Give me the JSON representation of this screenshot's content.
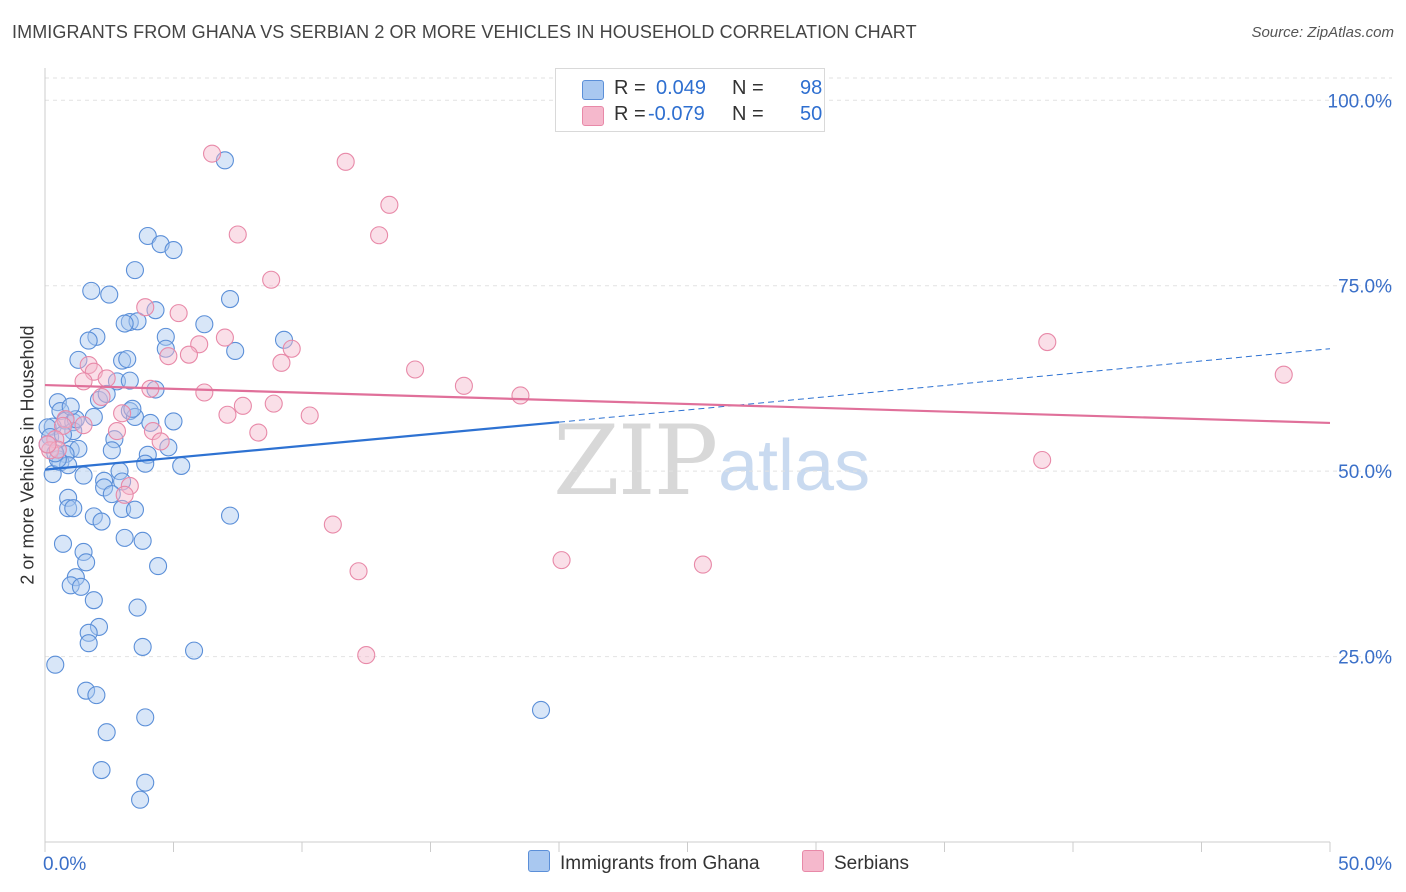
{
  "header": {
    "title": "IMMIGRANTS FROM GHANA VS SERBIAN 2 OR MORE VEHICLES IN HOUSEHOLD CORRELATION CHART",
    "source": "Source: ZipAtlas.com"
  },
  "stats": {
    "r_label": "R =",
    "n_label": "N =",
    "ghana": {
      "r": "0.049",
      "n": "98"
    },
    "serbians": {
      "r": "-0.079",
      "n": "50"
    }
  },
  "watermark": {
    "zip": "ZIP",
    "atlas": "atlas"
  },
  "legend": {
    "ghana": "Immigrants from Ghana",
    "serbians": "Serbians"
  },
  "colors": {
    "ghana_fill": "#a9c8f0",
    "ghana_stroke": "#5b8fd8",
    "ghana_line": "#2e72d2",
    "serbian_fill": "#f5b8cc",
    "serbian_stroke": "#e889a8",
    "serbian_line": "#e0709a",
    "tick_label": "#3a6fc8",
    "grid": "#e2e2e2"
  },
  "chart_data": {
    "type": "scatter",
    "xlabel": "",
    "ylabel": "2 or more Vehicles in Household",
    "xlim": [
      0,
      50
    ],
    "ylim": [
      0,
      103
    ],
    "x_tick_labels": [
      "0.0%",
      "50.0%"
    ],
    "y_ticks": [
      25,
      50,
      75,
      100
    ],
    "y_tick_labels": [
      "25.0%",
      "50.0%",
      "75.0%",
      "100.0%"
    ],
    "grid": true,
    "series": [
      {
        "name": "Immigrants from Ghana",
        "r": 0.049,
        "n": 98,
        "trend": {
          "x0": 0,
          "y0": 50.2,
          "x1": 20,
          "y1": 56.6,
          "dashed_to_x": 50,
          "dashed_to_y": 66.5
        },
        "points": [
          [
            7,
            91.9
          ],
          [
            4,
            81.7
          ],
          [
            4.5,
            80.6
          ],
          [
            5,
            79.8
          ],
          [
            3.5,
            77.1
          ],
          [
            1.8,
            74.3
          ],
          [
            2.5,
            73.8
          ],
          [
            7.2,
            73.2
          ],
          [
            4.3,
            71.7
          ],
          [
            3.3,
            70.1
          ],
          [
            3.6,
            70.2
          ],
          [
            6.2,
            69.8
          ],
          [
            3.1,
            69.9
          ],
          [
            4.7,
            68.1
          ],
          [
            2,
            68.1
          ],
          [
            1.7,
            67.6
          ],
          [
            9.3,
            67.7
          ],
          [
            4.7,
            66.5
          ],
          [
            7.4,
            66.2
          ],
          [
            1.3,
            65.0
          ],
          [
            3.0,
            64.9
          ],
          [
            2.8,
            62.1
          ],
          [
            3.3,
            62.2
          ],
          [
            4.3,
            61.0
          ],
          [
            2.1,
            59.6
          ],
          [
            0.5,
            59.3
          ],
          [
            0.6,
            58.1
          ],
          [
            3.3,
            58.1
          ],
          [
            3.5,
            57.3
          ],
          [
            1.9,
            57.3
          ],
          [
            0.8,
            56.8
          ],
          [
            1.1,
            56.6
          ],
          [
            4.1,
            56.5
          ],
          [
            5.0,
            56.7
          ],
          [
            0.3,
            56.0
          ],
          [
            0.1,
            55.9
          ],
          [
            1.1,
            55.4
          ],
          [
            0.2,
            54.6
          ],
          [
            2.7,
            54.3
          ],
          [
            0.1,
            53.6
          ],
          [
            1.0,
            52.9
          ],
          [
            1.3,
            53.0
          ],
          [
            2.6,
            52.8
          ],
          [
            0.8,
            52.3
          ],
          [
            4.0,
            52.2
          ],
          [
            0.6,
            51.2
          ],
          [
            3.9,
            51.0
          ],
          [
            0.9,
            50.8
          ],
          [
            0.3,
            49.6
          ],
          [
            2.9,
            50.0
          ],
          [
            2.3,
            48.7
          ],
          [
            3.0,
            48.6
          ],
          [
            2.3,
            47.8
          ],
          [
            0.9,
            46.4
          ],
          [
            0.9,
            45.0
          ],
          [
            1.1,
            45.0
          ],
          [
            3.0,
            44.9
          ],
          [
            3.5,
            44.8
          ],
          [
            7.2,
            44.0
          ],
          [
            1.9,
            43.9
          ],
          [
            2.2,
            43.2
          ],
          [
            3.1,
            41.0
          ],
          [
            3.8,
            40.6
          ],
          [
            0.7,
            40.2
          ],
          [
            1.5,
            39.1
          ],
          [
            1.6,
            37.7
          ],
          [
            4.4,
            37.2
          ],
          [
            1.2,
            35.7
          ],
          [
            1.0,
            34.6
          ],
          [
            1.4,
            34.4
          ],
          [
            1.9,
            32.6
          ],
          [
            3.6,
            31.6
          ],
          [
            2.1,
            29.0
          ],
          [
            1.7,
            28.2
          ],
          [
            1.7,
            26.8
          ],
          [
            3.8,
            26.3
          ],
          [
            5.8,
            25.8
          ],
          [
            0.4,
            23.9
          ],
          [
            1.6,
            20.4
          ],
          [
            2.0,
            19.8
          ],
          [
            19.3,
            17.8
          ],
          [
            3.9,
            16.8
          ],
          [
            2.4,
            14.8
          ],
          [
            2.2,
            9.7
          ],
          [
            3.9,
            8.0
          ],
          [
            3.7,
            5.7
          ],
          [
            0.5,
            51.6
          ],
          [
            1.2,
            57.0
          ],
          [
            2.4,
            60.4
          ],
          [
            3.2,
            65.1
          ],
          [
            4.8,
            53.2
          ],
          [
            1.5,
            49.4
          ],
          [
            0.7,
            54.9
          ],
          [
            2.6,
            46.9
          ],
          [
            5.3,
            50.7
          ],
          [
            0.4,
            52.4
          ],
          [
            3.4,
            58.4
          ],
          [
            1.0,
            58.7
          ]
        ]
      },
      {
        "name": "Serbians",
        "r": -0.079,
        "n": 50,
        "trend": {
          "x0": 0,
          "y0": 61.6,
          "x1": 50,
          "y1": 56.5
        },
        "points": [
          [
            6.5,
            92.8
          ],
          [
            11.7,
            91.7
          ],
          [
            13.4,
            85.9
          ],
          [
            7.5,
            81.9
          ],
          [
            13.0,
            81.8
          ],
          [
            8.8,
            75.8
          ],
          [
            3.9,
            72.1
          ],
          [
            5.2,
            71.3
          ],
          [
            39,
            67.4
          ],
          [
            6.0,
            67.1
          ],
          [
            9.6,
            66.5
          ],
          [
            7.0,
            68.0
          ],
          [
            4.8,
            65.5
          ],
          [
            5.6,
            65.7
          ],
          [
            9.2,
            64.6
          ],
          [
            1.7,
            64.3
          ],
          [
            14.4,
            63.7
          ],
          [
            1.9,
            63.4
          ],
          [
            48.2,
            63.0
          ],
          [
            1.5,
            62.1
          ],
          [
            2.4,
            62.5
          ],
          [
            16.3,
            61.5
          ],
          [
            4.1,
            61.1
          ],
          [
            6.2,
            60.6
          ],
          [
            18.5,
            60.2
          ],
          [
            2.2,
            60.0
          ],
          [
            8.9,
            59.1
          ],
          [
            7.7,
            58.8
          ],
          [
            3.0,
            57.8
          ],
          [
            7.1,
            57.6
          ],
          [
            10.3,
            57.5
          ],
          [
            0.8,
            57.0
          ],
          [
            0.7,
            56.1
          ],
          [
            4.2,
            55.4
          ],
          [
            8.3,
            55.2
          ],
          [
            0.4,
            54.3
          ],
          [
            4.5,
            54.0
          ],
          [
            0.2,
            52.8
          ],
          [
            38.8,
            51.5
          ],
          [
            0.5,
            52.9
          ],
          [
            3.3,
            48.0
          ],
          [
            11.2,
            42.8
          ],
          [
            20.1,
            38.0
          ],
          [
            25.6,
            37.4
          ],
          [
            12.2,
            36.5
          ],
          [
            12.5,
            25.2
          ],
          [
            1.5,
            56.2
          ],
          [
            0.1,
            53.6
          ],
          [
            3.1,
            46.8
          ],
          [
            2.8,
            55.4
          ]
        ]
      }
    ]
  }
}
